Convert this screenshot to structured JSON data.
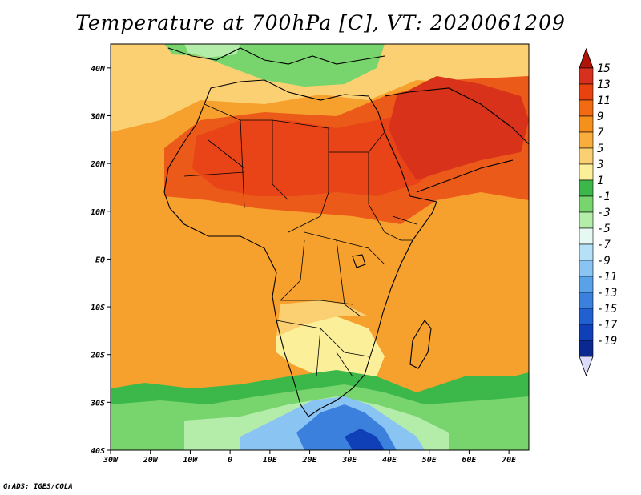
{
  "title": "Temperature at 700hPa [C], VT: 2020061209",
  "credit": "GrADS: IGES/COLA",
  "map": {
    "variable": "Temperature at 700hPa",
    "units": "C",
    "valid_time": "2020061209",
    "region": "Africa",
    "lon_range": [
      -30,
      75
    ],
    "lat_range": [
      -40,
      45
    ]
  },
  "axes": {
    "x_ticks": [
      {
        "lon": -30,
        "label": "30W"
      },
      {
        "lon": -20,
        "label": "20W"
      },
      {
        "lon": -10,
        "label": "10W"
      },
      {
        "lon": 0,
        "label": "0"
      },
      {
        "lon": 10,
        "label": "10E"
      },
      {
        "lon": 20,
        "label": "20E"
      },
      {
        "lon": 30,
        "label": "30E"
      },
      {
        "lon": 40,
        "label": "40E"
      },
      {
        "lon": 50,
        "label": "50E"
      },
      {
        "lon": 60,
        "label": "60E"
      },
      {
        "lon": 70,
        "label": "70E"
      }
    ],
    "y_ticks": [
      {
        "lat": 40,
        "label": "40N"
      },
      {
        "lat": 30,
        "label": "30N"
      },
      {
        "lat": 20,
        "label": "20N"
      },
      {
        "lat": 10,
        "label": "10N"
      },
      {
        "lat": 0,
        "label": "EQ"
      },
      {
        "lat": -10,
        "label": "10S"
      },
      {
        "lat": -20,
        "label": "20S"
      },
      {
        "lat": -30,
        "label": "30S"
      },
      {
        "lat": -40,
        "label": "40S"
      }
    ]
  },
  "colorbar": {
    "levels": [
      {
        "label": "15",
        "color": "#d7301f"
      },
      {
        "label": "13",
        "color": "#e8420f"
      },
      {
        "label": "11",
        "color": "#f26a12"
      },
      {
        "label": "9",
        "color": "#f5901c"
      },
      {
        "label": "7",
        "color": "#f8ad3c"
      },
      {
        "label": "5",
        "color": "#fbd072"
      },
      {
        "label": "3",
        "color": "#fcef9a"
      },
      {
        "label": "1",
        "color": "#3cb84a"
      },
      {
        "label": "-1",
        "color": "#78d46c"
      },
      {
        "label": "-3",
        "color": "#b4ecaa"
      },
      {
        "label": "-5",
        "color": "#e6f8f2"
      },
      {
        "label": "-7",
        "color": "#b6e0f8"
      },
      {
        "label": "-9",
        "color": "#8ac4f2"
      },
      {
        "label": "-11",
        "color": "#5aa2e8"
      },
      {
        "label": "-13",
        "color": "#3a80dc"
      },
      {
        "label": "-15",
        "color": "#2060d0"
      },
      {
        "label": "-17",
        "color": "#1040b8"
      },
      {
        "label": "-19",
        "color": "#0a2890"
      }
    ],
    "top_color": "#b01408",
    "bottom_color": "#dcdcfc"
  },
  "regions": [
    {
      "name": "background-warm",
      "color": "#f6a02e"
    },
    {
      "name": "ne-africa-hot",
      "color": "#ec5a1a"
    },
    {
      "name": "sahara-hot",
      "color": "#e84418"
    },
    {
      "name": "arabia-hot",
      "color": "#d8321a"
    },
    {
      "name": "north-cool",
      "color": "#fbd072"
    },
    {
      "name": "mediterranean",
      "color": "#78d46c"
    },
    {
      "name": "south-africa-cool",
      "color": "#fcef9a"
    },
    {
      "name": "southern-ocean",
      "color": "#3cb84a"
    },
    {
      "name": "south-cold",
      "color": "#8ac4f2"
    },
    {
      "name": "south-colder",
      "color": "#3a80dc"
    }
  ]
}
